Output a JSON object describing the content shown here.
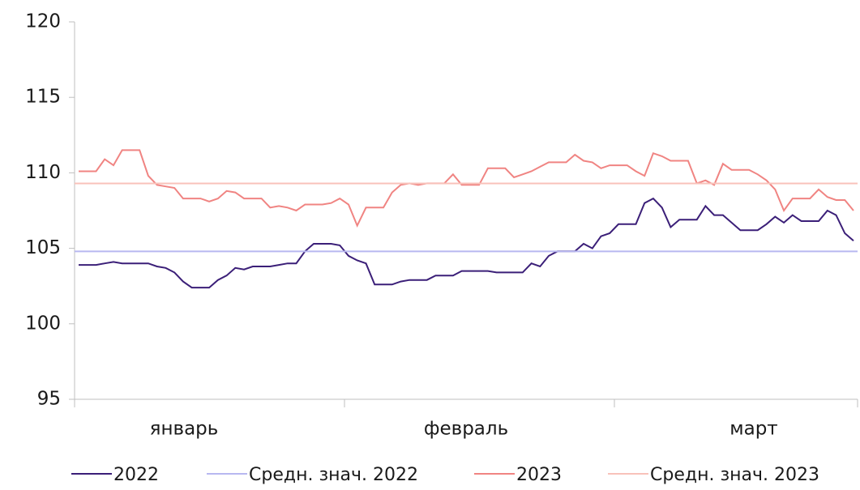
{
  "chart_data": {
    "type": "line",
    "months": [
      "январь",
      "февраль",
      "март"
    ],
    "ylim": [
      95,
      120
    ],
    "yticks": [
      95,
      100,
      105,
      110,
      115,
      120
    ],
    "series": [
      {
        "name": "2022",
        "color": "#3b1f78",
        "values": [
          103.9,
          103.9,
          103.9,
          104.0,
          104.1,
          104.0,
          104.0,
          104.0,
          104.0,
          103.8,
          103.7,
          103.4,
          102.8,
          102.4,
          102.4,
          102.4,
          102.9,
          103.2,
          103.7,
          103.6,
          103.8,
          103.8,
          103.8,
          103.9,
          104.0,
          104.0,
          104.8,
          105.3,
          105.3,
          105.3,
          105.2,
          104.5,
          104.2,
          104.0,
          102.6,
          102.6,
          102.6,
          102.8,
          102.9,
          102.9,
          102.9,
          103.2,
          103.2,
          103.2,
          103.5,
          103.5,
          103.5,
          103.5,
          103.4,
          103.4,
          103.4,
          103.4,
          104.0,
          103.8,
          104.5,
          104.8,
          104.8,
          104.8,
          105.3,
          105.0,
          105.8,
          106.0,
          106.6,
          106.6,
          106.6,
          108.0,
          108.3,
          107.7,
          106.4,
          106.9,
          106.9,
          106.9,
          107.8,
          107.2,
          107.2,
          106.7,
          106.2,
          106.2,
          106.2,
          106.6,
          107.1,
          106.7,
          107.2,
          106.8,
          106.8,
          106.8,
          107.5,
          107.2,
          106.0,
          105.5
        ]
      },
      {
        "name": "Средн. знач. 2022",
        "color": "#b8b8f0",
        "value": 104.8
      },
      {
        "name": "2023",
        "color": "#f08482",
        "values": [
          110.1,
          110.1,
          110.1,
          110.9,
          110.5,
          111.5,
          111.5,
          111.5,
          109.8,
          109.2,
          109.1,
          109.0,
          108.3,
          108.3,
          108.3,
          108.1,
          108.3,
          108.8,
          108.7,
          108.3,
          108.3,
          108.3,
          107.7,
          107.8,
          107.7,
          107.5,
          107.9,
          107.9,
          107.9,
          108.0,
          108.3,
          107.9,
          106.5,
          107.7,
          107.7,
          107.7,
          108.7,
          109.2,
          109.3,
          109.2,
          109.3,
          109.3,
          109.3,
          109.9,
          109.2,
          109.2,
          109.2,
          110.3,
          110.3,
          110.3,
          109.7,
          109.9,
          110.1,
          110.4,
          110.7,
          110.7,
          110.7,
          111.2,
          110.8,
          110.7,
          110.3,
          110.5,
          110.5,
          110.5,
          110.1,
          109.8,
          111.3,
          111.1,
          110.8,
          110.8,
          110.8,
          109.3,
          109.5,
          109.2,
          110.6,
          110.2,
          110.2,
          110.2,
          109.9,
          109.5,
          108.9,
          107.5,
          108.3,
          108.3,
          108.3,
          108.9,
          108.4,
          108.2,
          108.2,
          107.5
        ]
      },
      {
        "name": "Средн. знач. 2023",
        "color": "#f8c2ba",
        "value": 109.3
      }
    ]
  }
}
